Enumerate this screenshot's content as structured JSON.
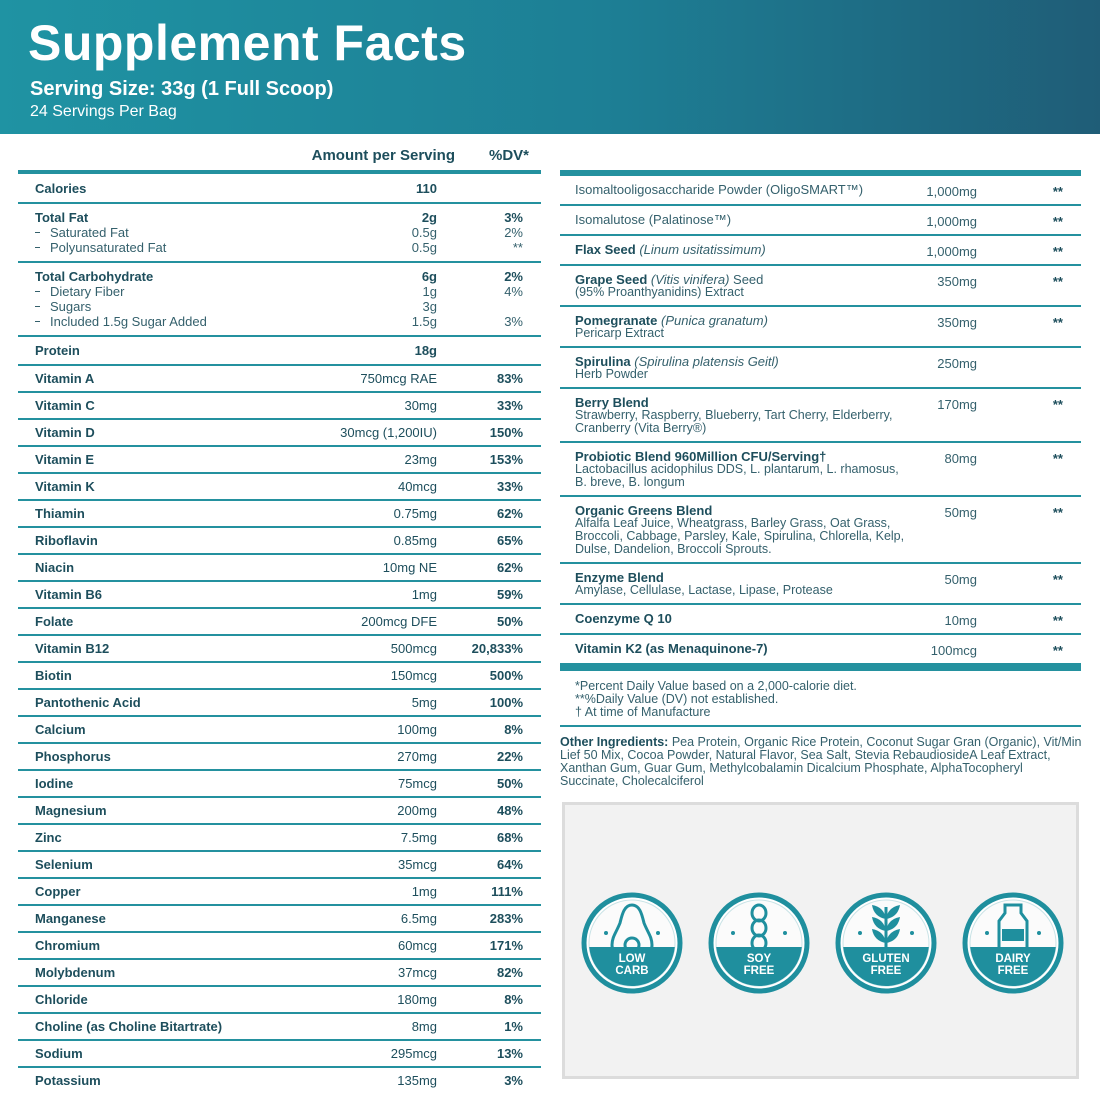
{
  "header": {
    "title": "Supplement Facts",
    "serving_size": "Serving Size: 33g (1 Full Scoop)",
    "servings": "24 Servings Per Bag"
  },
  "left_table": {
    "columns": [
      "Amount per Serving",
      "%DV*"
    ],
    "macros": [
      {
        "name": "Calories",
        "amount": "110"
      },
      {
        "name": "Total Fat",
        "amount": "2g",
        "dv": "3%",
        "sub": [
          {
            "name": "Saturated Fat",
            "amount": "0.5g",
            "dv": "2%"
          },
          {
            "name": "Polyunsaturated Fat",
            "amount": "0.5g",
            "dv": "**"
          }
        ]
      },
      {
        "name": "Total Carbohydrate",
        "amount": "6g",
        "dv": "2%",
        "sub": [
          {
            "name": "Dietary Fiber",
            "amount": "1g",
            "dv": "4%"
          },
          {
            "name": "Sugars",
            "amount": "3g"
          },
          {
            "name": "Included 1.5g Sugar Added",
            "amount": "1.5g",
            "dv": "3%"
          }
        ]
      },
      {
        "name": "Protein",
        "amount": "18g"
      }
    ],
    "micronutrients": [
      {
        "name": "Vitamin A",
        "amount": "750mcg RAE",
        "dv": "83%"
      },
      {
        "name": "Vitamin C",
        "amount": "30mg",
        "dv": "33%"
      },
      {
        "name": "Vitamin D",
        "amount": "30mcg (1,200IU)",
        "dv": "150%"
      },
      {
        "name": "Vitamin E",
        "amount": "23mg",
        "dv": "153%"
      },
      {
        "name": "Vitamin K",
        "amount": "40mcg",
        "dv": "33%"
      },
      {
        "name": "Thiamin",
        "amount": "0.75mg",
        "dv": "62%"
      },
      {
        "name": "Riboflavin",
        "amount": "0.85mg",
        "dv": "65%"
      },
      {
        "name": "Niacin",
        "amount": "10mg NE",
        "dv": "62%"
      },
      {
        "name": "Vitamin B6",
        "amount": "1mg",
        "dv": "59%"
      },
      {
        "name": "Folate",
        "amount": "200mcg DFE",
        "dv": "50%"
      },
      {
        "name": "Vitamin B12",
        "amount": "500mcg",
        "dv": "20,833%"
      },
      {
        "name": "Biotin",
        "amount": "150mcg",
        "dv": "500%"
      },
      {
        "name": "Pantothenic Acid",
        "amount": "5mg",
        "dv": "100%"
      },
      {
        "name": "Calcium",
        "amount": "100mg",
        "dv": "8%"
      },
      {
        "name": "Phosphorus",
        "amount": "270mg",
        "dv": "22%"
      },
      {
        "name": "Iodine",
        "amount": "75mcg",
        "dv": "50%"
      },
      {
        "name": "Magnesium",
        "amount": "200mg",
        "dv": "48%"
      },
      {
        "name": "Zinc",
        "amount": "7.5mg",
        "dv": "68%"
      },
      {
        "name": "Selenium",
        "amount": "35mcg",
        "dv": "64%"
      },
      {
        "name": "Copper",
        "amount": "1mg",
        "dv": "111%"
      },
      {
        "name": "Manganese",
        "amount": "6.5mg",
        "dv": "283%"
      },
      {
        "name": "Chromium",
        "amount": "60mcg",
        "dv": "171%"
      },
      {
        "name": "Molybdenum",
        "amount": "37mcg",
        "dv": "82%"
      },
      {
        "name": "Chloride",
        "amount": "180mg",
        "dv": "8%"
      },
      {
        "name": "Choline (as Choline Bitartrate)",
        "amount": "8mg",
        "dv": "1%"
      },
      {
        "name": "Sodium",
        "amount": "295mcg",
        "dv": "13%"
      },
      {
        "name": "Potassium",
        "amount": "135mg",
        "dv": "3%"
      }
    ]
  },
  "right_table": {
    "rows": [
      {
        "label": "Isomaltooligosaccharide Powder (OligoSMART™)",
        "amount": "1,000mg",
        "dv": "**"
      },
      {
        "label": "Isomalutose (Palatinose™)",
        "amount": "1,000mg",
        "dv": "**"
      },
      {
        "name": "Flax Seed",
        "latin": "(Linum usitatissimum)",
        "amount": "1,000mg",
        "dv": "**"
      },
      {
        "name": "Grape Seed",
        "latin": "(Vitis vinifera)",
        "rest": "Seed",
        "description": "(95% Proanthyanidins) Extract",
        "amount": "350mg",
        "dv": "**"
      },
      {
        "name": "Pomegranate",
        "latin": "(Punica granatum)",
        "description": "Pericarp Extract",
        "amount": "350mg",
        "dv": "**"
      },
      {
        "name": "Spirulina",
        "latin": "(Spirulina platensis Geitl)",
        "description": "Herb Powder",
        "amount": "250mg"
      },
      {
        "name": "Berry Blend",
        "description": "Strawberry, Raspberry, Blueberry, Tart Cherry, Elderberry, Cranberry (Vita Berry®)",
        "amount": "170mg",
        "dv": "**"
      },
      {
        "name": "Probiotic Blend 960Million CFU/Serving†",
        "description": "Lactobacillus acidophilus DDS, L. plantarum, L. rhamosus, B. breve, B. longum",
        "amount": "80mg",
        "dv": "**"
      },
      {
        "name": "Organic Greens Blend",
        "description": "Alfalfa Leaf Juice, Wheatgrass, Barley Grass, Oat Grass, Broccoli, Cabbage, Parsley, Kale, Spirulina, Chlorella, Kelp, Dulse, Dandelion, Broccoli Sprouts.",
        "amount": "50mg",
        "dv": "**"
      },
      {
        "name": "Enzyme Blend",
        "description": "Amylase, Cellulase, Lactase, Lipase, Protease",
        "amount": "50mg",
        "dv": "**"
      },
      {
        "name": "Coenzyme Q 10",
        "amount": "10mg",
        "dv": "**"
      },
      {
        "name": "Vitamin K2 (as Menaquinone-7)",
        "amount": "100mcg",
        "dv": "**"
      }
    ],
    "notes": [
      "*Percent Daily Value based on a 2,000-calorie diet.",
      "**%Daily Value (DV) not established.",
      "† At time of Manufacture"
    ],
    "other_ingredients": {
      "label": "Other Ingredients:",
      "text": "Pea Protein, Organic Rice Protein, Coconut Sugar Gran (Organic), Vit/Min Lief 50 Mix, Cocoa Powder, Natural Flavor, Sea Salt, Stevia RebaudiosideA Leaf Extract, Xanthan Gum, Guar Gum, Methylcobalamin Dicalcium Phosphate, AlphaTocopheryl Succinate, Cholecalciferol"
    }
  },
  "badges": [
    {
      "lines": [
        "LOW",
        "CARB"
      ]
    },
    {
      "lines": [
        "SOY",
        "FREE"
      ]
    },
    {
      "lines": [
        "GLUTEN",
        "FREE"
      ]
    },
    {
      "lines": [
        "DAIRY",
        "FREE"
      ]
    }
  ]
}
